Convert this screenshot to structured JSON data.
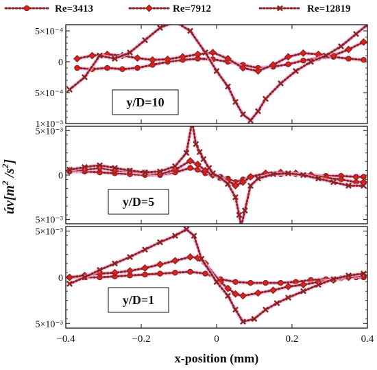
{
  "colors": {
    "series": "#8b2323",
    "marker_fill": "#e0201b",
    "halo": "#f5b8e2",
    "axis": "#111111"
  },
  "legend": [
    "Re=3413",
    "Re=7912",
    "Re=12819"
  ],
  "x_axis": {
    "label": "x-position (mm)",
    "ticks": [
      -0.4,
      -0.2,
      0,
      0.2,
      0.4
    ],
    "tick_labels": [
      "−0.4",
      "−0.2",
      "0",
      "0.2",
      "0.4"
    ],
    "range": [
      -0.4,
      0.4
    ]
  },
  "y_axis_label": {
    "main": "úv[m",
    "sup1": "2",
    "mid": " /s",
    "sup2": "2",
    "end": "]"
  },
  "chart_data": [
    {
      "type": "line",
      "panel_label": "y/D=10",
      "ylim": [
        -0.001,
        0.0006
      ],
      "y_tick_values": [
        0.0005,
        0,
        -0.0005,
        -0.001
      ],
      "y_tick_labels": [
        "5×10⁻⁴",
        "0",
        "5×10⁻⁴",
        "1×10⁻³"
      ],
      "series": [
        {
          "name": "Re=3413",
          "marker": "circle",
          "x": [
            -0.37,
            -0.33,
            -0.29,
            -0.25,
            -0.21,
            -0.17,
            -0.13,
            -0.09,
            -0.05,
            -0.01,
            0.03,
            0.07,
            0.11,
            0.15,
            0.19,
            0.23,
            0.27,
            0.31,
            0.35,
            0.39
          ],
          "y": [
            -0.0001,
            -0.00012,
            -0.0001,
            -0.00012,
            -0.0001,
            -5e-05,
            0,
            3e-05,
            5e-05,
            4e-05,
            0.0,
            -5e-05,
            -0.0001,
            -8e-05,
            -4e-05,
            2e-05,
            6e-05,
            8e-05,
            5e-05,
            3e-05
          ]
        },
        {
          "name": "Re=7912",
          "marker": "diamond",
          "x": [
            -0.37,
            -0.33,
            -0.29,
            -0.25,
            -0.21,
            -0.17,
            -0.13,
            -0.09,
            -0.05,
            -0.01,
            0.03,
            0.07,
            0.11,
            0.15,
            0.19,
            0.23,
            0.27,
            0.31,
            0.35,
            0.39
          ],
          "y": [
            5e-05,
            0.0001,
            0.00012,
            0.0001,
            6e-05,
            3e-05,
            4e-05,
            8e-05,
            0.00012,
            0.00015,
            5e-05,
            -0.0001,
            -0.00015,
            -5e-05,
            8e-05,
            0.00014,
            0.00012,
            0.0001,
            0.0002,
            0.00032
          ]
        },
        {
          "name": "Re=12819",
          "marker": "cross",
          "x": [
            -0.39,
            -0.35,
            -0.31,
            -0.27,
            -0.23,
            -0.19,
            -0.15,
            -0.11,
            -0.07,
            -0.03,
            0.0,
            0.03,
            0.05,
            0.07,
            0.09,
            0.11,
            0.13,
            0.17,
            0.21,
            0.25,
            0.29,
            0.33,
            0.37,
            0.4
          ],
          "y": [
            -0.00045,
            -0.00025,
            0.0001,
            5e-05,
            0.00015,
            0.00035,
            0.00055,
            0.00065,
            0.0005,
            0.00015,
            -0.00015,
            -0.0004,
            -0.00065,
            -0.00085,
            -0.00095,
            -0.0008,
            -0.0006,
            -0.00035,
            -0.00015,
            0.0,
            0.0001,
            0.00025,
            0.00045,
            0.0006
          ]
        }
      ]
    },
    {
      "type": "line",
      "panel_label": "y/D=5",
      "ylim": [
        -0.0055,
        0.0055
      ],
      "y_tick_values": [
        0.005,
        0,
        -0.005
      ],
      "y_tick_labels": [
        "5×10⁻³",
        "0",
        "5×10⁻³"
      ],
      "series": [
        {
          "name": "Re=3413",
          "marker": "circle",
          "x": [
            -0.39,
            -0.35,
            -0.31,
            -0.27,
            -0.23,
            -0.19,
            -0.15,
            -0.11,
            -0.07,
            -0.05,
            -0.03,
            -0.01,
            0.01,
            0.03,
            0.05,
            0.07,
            0.09,
            0.13,
            0.17,
            0.21,
            0.25,
            0.29,
            0.33,
            0.37,
            0.39
          ],
          "y": [
            0.0004,
            0.0004,
            0.0003,
            0.0002,
            0.0001,
            0.0,
            0.0,
            0.0003,
            0.0008,
            0.0006,
            0.0002,
            0.0,
            -0.0002,
            -0.0004,
            -0.0008,
            -0.0005,
            -0.0002,
            0.0,
            0.0001,
            0.0001,
            0.0,
            -0.0001,
            -0.0001,
            -0.0002,
            -0.0002
          ]
        },
        {
          "name": "Re=7912",
          "marker": "diamond",
          "x": [
            -0.39,
            -0.35,
            -0.31,
            -0.27,
            -0.23,
            -0.19,
            -0.15,
            -0.11,
            -0.07,
            -0.05,
            -0.03,
            -0.01,
            0.01,
            0.03,
            0.05,
            0.07,
            0.09,
            0.13,
            0.17,
            0.21,
            0.25,
            0.29,
            0.33,
            0.37,
            0.39
          ],
          "y": [
            0.0005,
            0.0006,
            0.0008,
            0.0005,
            0.0004,
            0.0002,
            0.0001,
            0.0006,
            0.0016,
            0.0012,
            0.0005,
            0.0,
            -0.0003,
            -0.0006,
            -0.0012,
            -0.0008,
            -0.0002,
            0.0002,
            0.0003,
            0.0002,
            0.0,
            -0.0003,
            -0.0005,
            -0.0008,
            -0.0008
          ]
        },
        {
          "name": "Re=12819",
          "marker": "cross",
          "x": [
            -0.39,
            -0.35,
            -0.31,
            -0.27,
            -0.23,
            -0.19,
            -0.15,
            -0.11,
            -0.08,
            -0.065,
            -0.055,
            -0.045,
            -0.035,
            -0.02,
            -0.01,
            0.01,
            0.03,
            0.05,
            0.06,
            0.065,
            0.075,
            0.09,
            0.11,
            0.15,
            0.19,
            0.23,
            0.27,
            0.31,
            0.35,
            0.39
          ],
          "y": [
            0.0006,
            0.0009,
            0.0011,
            0.0008,
            0.0005,
            0.0003,
            0.0004,
            0.001,
            0.0025,
            0.006,
            0.0035,
            0.0026,
            0.0018,
            0.0008,
            0.0002,
            -0.0003,
            -0.001,
            -0.0025,
            -0.0045,
            -0.0058,
            -0.004,
            -0.0012,
            -0.0004,
            0.0001,
            0.0002,
            0.0,
            -0.0004,
            -0.0008,
            -0.0012,
            -0.0012
          ]
        }
      ]
    },
    {
      "type": "line",
      "panel_label": "y/D=1",
      "ylim": [
        -0.0055,
        0.0055
      ],
      "y_tick_values": [
        0.005,
        0,
        -0.005
      ],
      "y_tick_labels": [
        "5×10⁻³",
        "0",
        "5×10⁻³"
      ],
      "series": [
        {
          "name": "Re=3413",
          "marker": "circle",
          "x": [
            -0.39,
            -0.35,
            -0.31,
            -0.27,
            -0.23,
            -0.19,
            -0.15,
            -0.11,
            -0.07,
            -0.03,
            0.01,
            0.05,
            0.09,
            0.13,
            0.17,
            0.21,
            0.25,
            0.29,
            0.33,
            0.37,
            0.39
          ],
          "y": [
            0.0,
            0.0,
            0.0,
            0.0001,
            0.0002,
            0.0003,
            0.0004,
            0.0005,
            0.0006,
            0.0004,
            -0.0002,
            -0.0005,
            -0.0006,
            -0.0006,
            -0.0006,
            -0.0005,
            -0.0003,
            -0.0002,
            -0.0001,
            0.0,
            0.0
          ]
        },
        {
          "name": "Re=7912",
          "marker": "diamond",
          "x": [
            -0.39,
            -0.35,
            -0.31,
            -0.27,
            -0.23,
            -0.19,
            -0.15,
            -0.11,
            -0.07,
            -0.05,
            -0.03,
            0.01,
            0.03,
            0.05,
            0.07,
            0.11,
            0.15,
            0.19,
            0.23,
            0.27,
            0.31,
            0.35,
            0.39
          ],
          "y": [
            0.0,
            0.0002,
            0.0004,
            0.0005,
            0.0007,
            0.001,
            0.0014,
            0.0018,
            0.0022,
            0.0021,
            0.0015,
            -0.0005,
            -0.0012,
            -0.0018,
            -0.002,
            -0.0017,
            -0.0014,
            -0.001,
            -0.0008,
            -0.0005,
            -0.0003,
            0.0,
            0.0002
          ]
        },
        {
          "name": "Re=12819",
          "marker": "cross",
          "x": [
            -0.39,
            -0.35,
            -0.31,
            -0.27,
            -0.23,
            -0.19,
            -0.15,
            -0.11,
            -0.08,
            -0.06,
            -0.04,
            0.0,
            0.03,
            0.05,
            0.07,
            0.1,
            0.13,
            0.16,
            0.19,
            0.23,
            0.27,
            0.31,
            0.35,
            0.39
          ],
          "y": [
            -0.0007,
            0.0,
            0.0008,
            0.0015,
            0.0022,
            0.003,
            0.0038,
            0.0045,
            0.0052,
            0.0045,
            0.002,
            -0.0005,
            -0.002,
            -0.0035,
            -0.0048,
            -0.0045,
            -0.0035,
            -0.0028,
            -0.0022,
            -0.0015,
            -0.0008,
            -0.0002,
            0.0002,
            0.0004
          ]
        }
      ]
    }
  ]
}
